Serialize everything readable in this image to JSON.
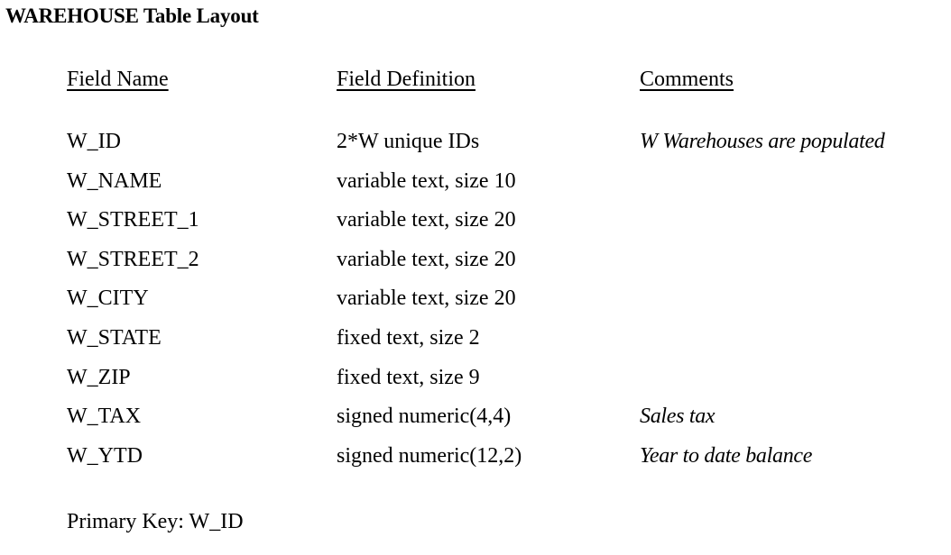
{
  "title": "WAREHOUSE Table Layout",
  "headers": {
    "field_name": "Field Name",
    "field_definition": "Field Definition",
    "comments": "Comments"
  },
  "rows": [
    {
      "name": "W_ID",
      "definition": "2*W unique IDs",
      "comment": "W Warehouses are populated"
    },
    {
      "name": "W_NAME",
      "definition": "variable text, size 10",
      "comment": ""
    },
    {
      "name": "W_STREET_1",
      "definition": "variable text, size 20",
      "comment": ""
    },
    {
      "name": "W_STREET_2",
      "definition": "variable text, size 20",
      "comment": ""
    },
    {
      "name": "W_CITY",
      "definition": "variable text, size 20",
      "comment": ""
    },
    {
      "name": "W_STATE",
      "definition": "fixed text, size 2",
      "comment": ""
    },
    {
      "name": "W_ZIP",
      "definition": "fixed text, size 9",
      "comment": ""
    },
    {
      "name": "W_TAX",
      "definition": "signed numeric(4,4)",
      "comment": "Sales tax"
    },
    {
      "name": "W_YTD",
      "definition": "signed numeric(12,2)",
      "comment": "Year to date balance"
    }
  ],
  "primary_key": {
    "label": "Primary Key: ",
    "value": "W_ID"
  }
}
